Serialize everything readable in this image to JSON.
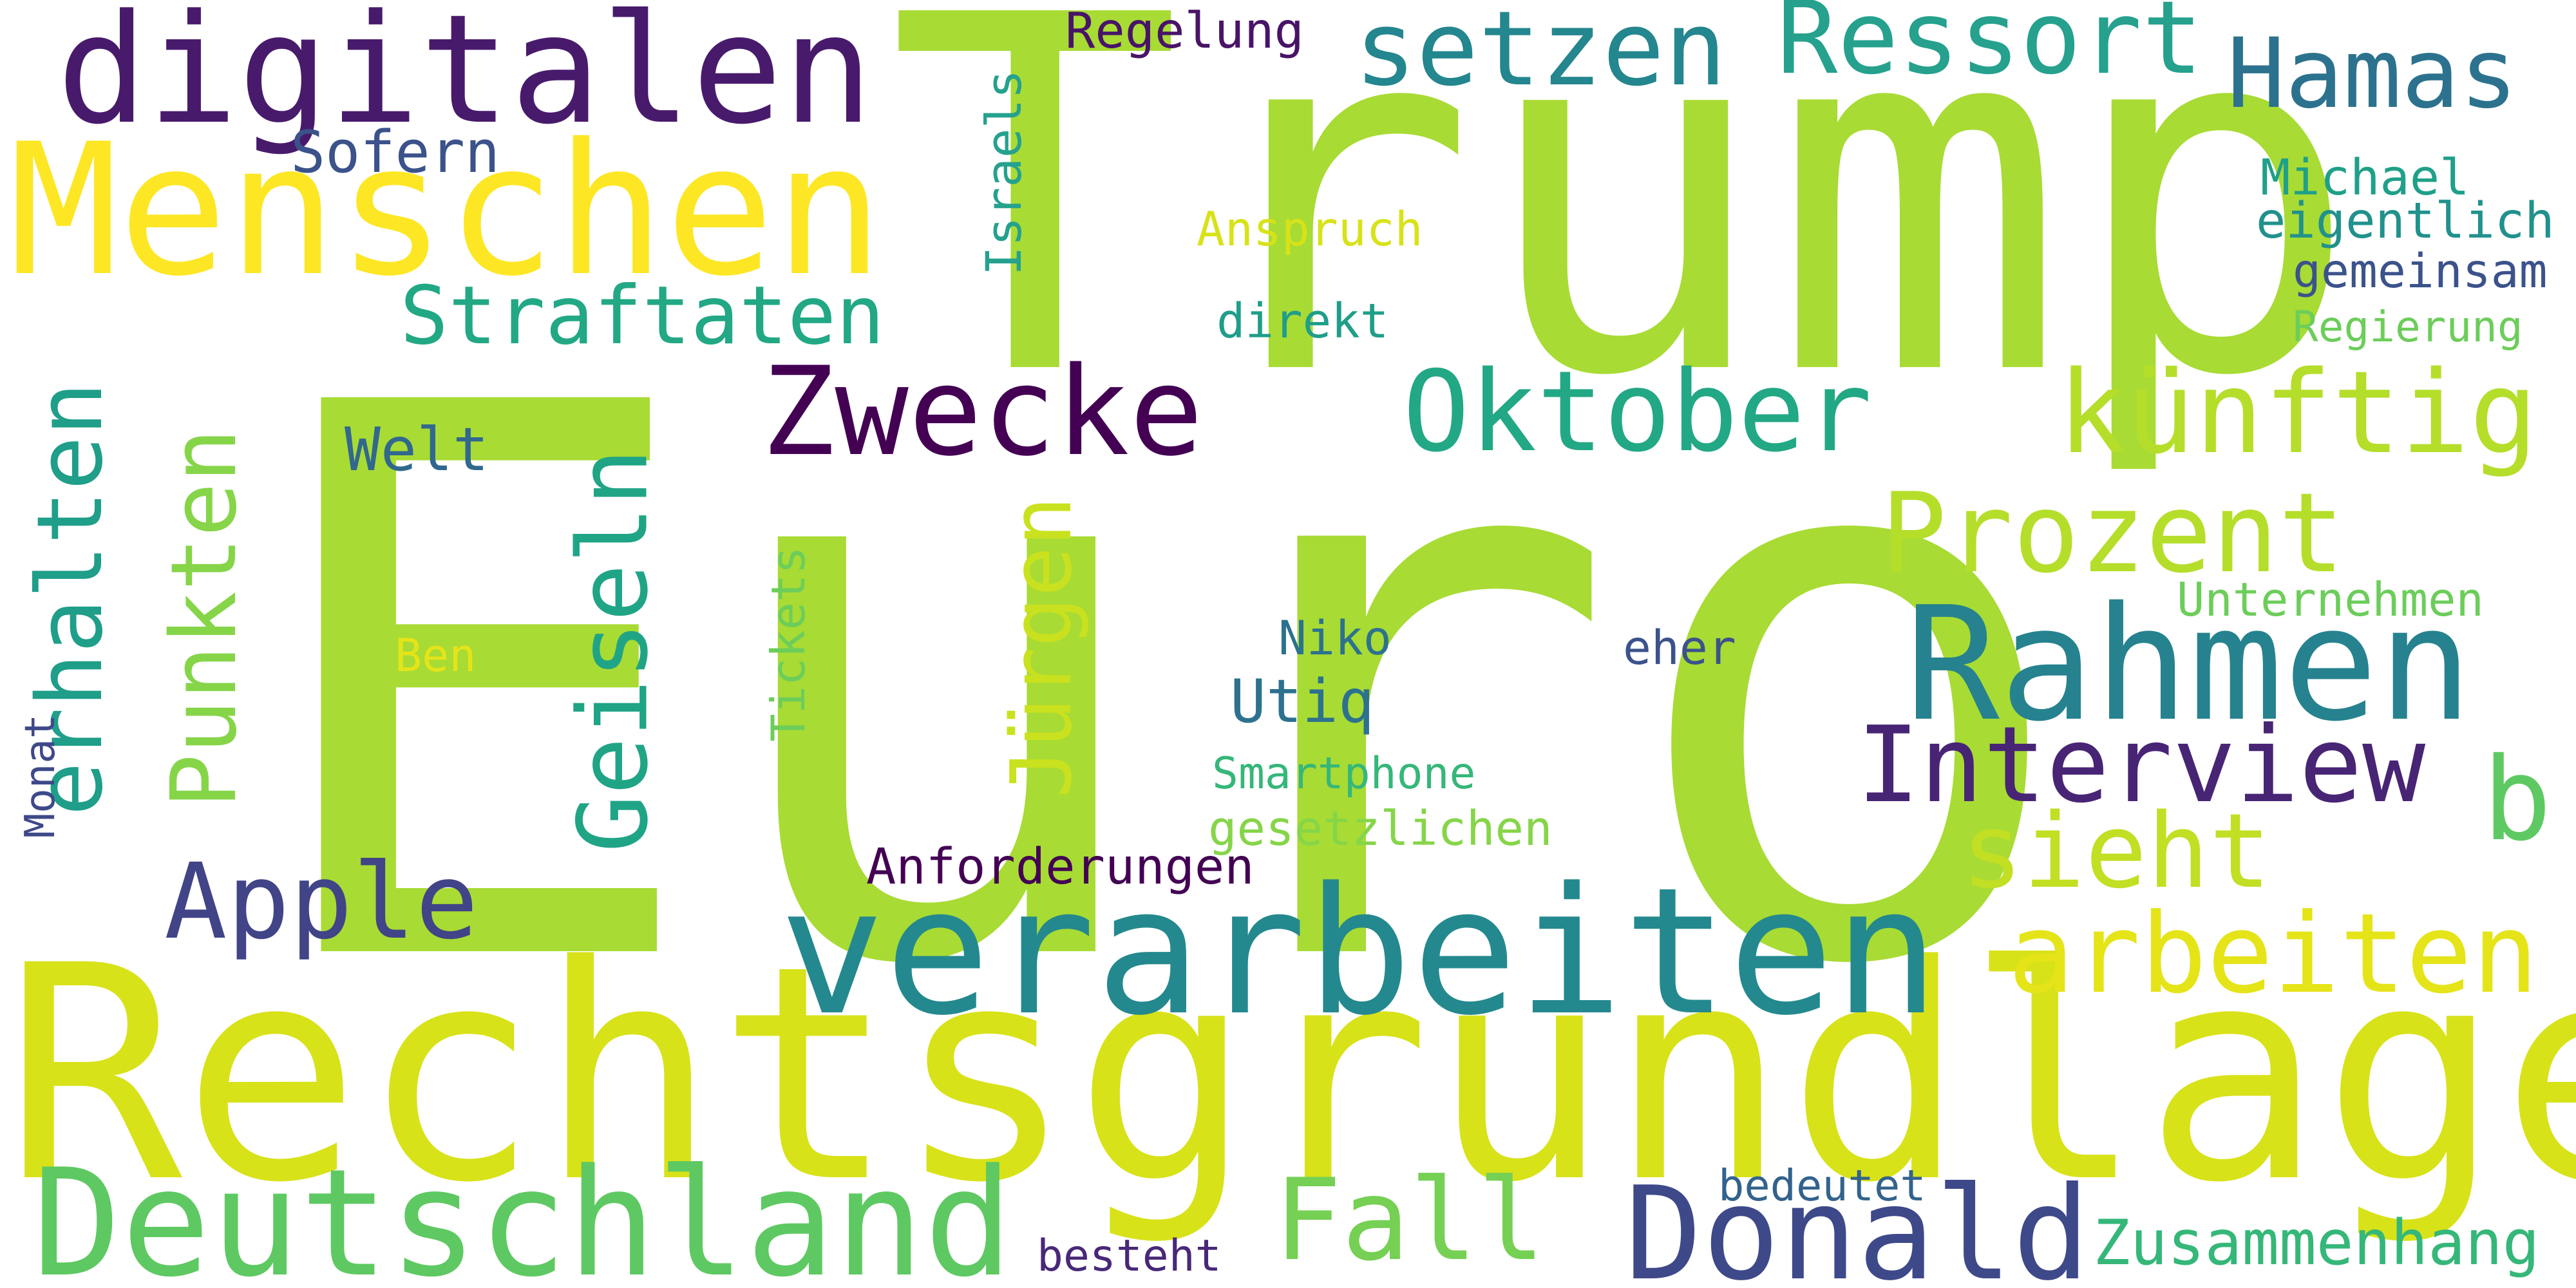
{
  "words": [
    {
      "text": "Euro",
      "color": "#a8db34"
    },
    {
      "text": "Trump",
      "color": "#a8db34"
    },
    {
      "text": "Rechtsgrundlage",
      "color": "#d8e219"
    },
    {
      "text": "verarbeiten",
      "color": "#23898e"
    },
    {
      "text": "Menschen",
      "color": "#fde725"
    },
    {
      "text": "digitalen",
      "color": "#481a6c"
    },
    {
      "text": "Deutschland",
      "color": "#5ec962"
    },
    {
      "text": "Rahmen",
      "color": "#26828e"
    },
    {
      "text": "Donald",
      "color": "#3e4989"
    },
    {
      "text": "Zwecke",
      "color": "#440154"
    },
    {
      "text": "Oktober",
      "color": "#22a884"
    },
    {
      "text": "künftig",
      "color": "#b5de2b"
    },
    {
      "text": "Prozent",
      "color": "#b5de2b"
    },
    {
      "text": "Interview",
      "color": "#482475"
    },
    {
      "text": "arbeiten",
      "color": "#e5e419"
    },
    {
      "text": "sieht",
      "color": "#c2df23"
    },
    {
      "text": "Fall",
      "color": "#75d054"
    },
    {
      "text": "Apple",
      "color": "#414487"
    },
    {
      "text": "setzen",
      "color": "#24868e"
    },
    {
      "text": "Ressort",
      "color": "#25a18e"
    },
    {
      "text": "Hamas",
      "color": "#2c728e"
    },
    {
      "text": "Straftaten",
      "color": "#22a884"
    },
    {
      "text": "erhalten",
      "color": "#1f9e89"
    },
    {
      "text": "Punkten",
      "color": "#86d549"
    },
    {
      "text": "Geiseln",
      "color": "#20a486"
    },
    {
      "text": "Jürgen",
      "color": "#cae11f"
    },
    {
      "text": "b",
      "color": "#5ec962"
    },
    {
      "text": "Zusammenhang",
      "color": "#35b779"
    },
    {
      "text": "Welt",
      "color": "#31688e"
    },
    {
      "text": "Utiq",
      "color": "#2c728e"
    },
    {
      "text": "Sofern",
      "color": "#3b528b"
    },
    {
      "text": "Anforderungen",
      "color": "#440154"
    },
    {
      "text": "Regelung",
      "color": "#481467"
    },
    {
      "text": "Israels",
      "color": "#25a18e"
    },
    {
      "text": "Anspruch",
      "color": "#d8e219"
    },
    {
      "text": "Michael",
      "color": "#1fa088"
    },
    {
      "text": "eigentlich",
      "color": "#21918c"
    },
    {
      "text": "gemeinsam",
      "color": "#3b528b"
    },
    {
      "text": "Regierung",
      "color": "#6ccd5a"
    },
    {
      "text": "direkt",
      "color": "#1f9e89"
    },
    {
      "text": "Unternehmen",
      "color": "#6ccd5a"
    },
    {
      "text": "Tickets",
      "color": "#6ccd5a"
    },
    {
      "text": "Niko",
      "color": "#2c728e"
    },
    {
      "text": "eher",
      "color": "#3b528b"
    },
    {
      "text": "Ben",
      "color": "#e5e419"
    },
    {
      "text": "Smartphone",
      "color": "#35b779"
    },
    {
      "text": "gesetzlichen",
      "color": "#86d549"
    },
    {
      "text": "bedeutet",
      "color": "#33638d"
    },
    {
      "text": "besteht",
      "color": "#482878"
    },
    {
      "text": "Monat",
      "color": "#3e4989"
    }
  ]
}
